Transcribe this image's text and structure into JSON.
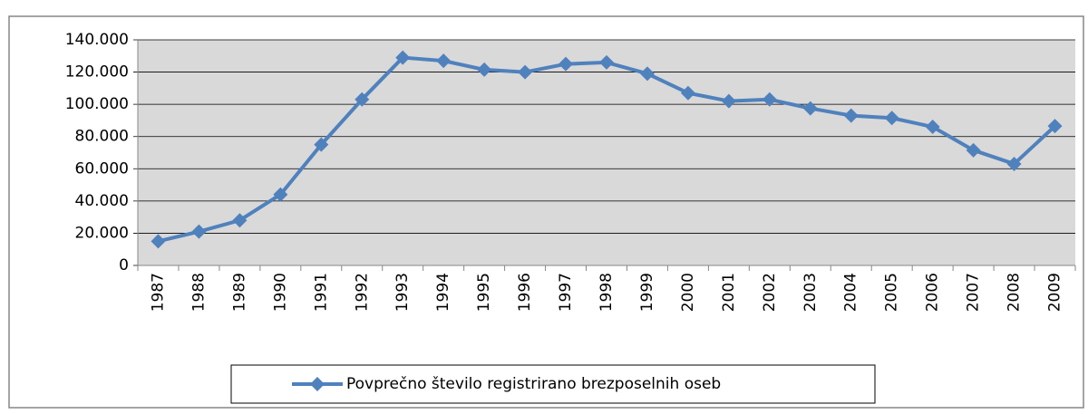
{
  "chart_data": {
    "type": "line",
    "categories": [
      "1987",
      "1988",
      "1989",
      "1990",
      "1991",
      "1992",
      "1993",
      "1994",
      "1995",
      "1996",
      "1997",
      "1998",
      "1999",
      "2000",
      "2001",
      "2002",
      "2003",
      "2004",
      "2005",
      "2006",
      "2007",
      "2008",
      "2009"
    ],
    "series": [
      {
        "name": "Povprečno število registrirano brezposelnih oseb",
        "color": "#4f81bd",
        "values": [
          15000,
          21000,
          28000,
          44000,
          75000,
          103000,
          129000,
          127000,
          121500,
          120000,
          125000,
          126000,
          119000,
          107000,
          102000,
          103000,
          97500,
          93000,
          91500,
          86000,
          71500,
          63000,
          86500
        ]
      }
    ],
    "ylim": [
      0,
      140000
    ],
    "yticks": [
      0,
      {
        "value": 20000,
        "label": "20.000"
      },
      {
        "value": 40000,
        "label": "40.000"
      },
      {
        "value": 60000,
        "label": "60.000"
      },
      {
        "value": 80000,
        "label": "80.000"
      },
      {
        "value": 100000,
        "label": "100.000"
      },
      {
        "value": 120000,
        "label": "120.000"
      },
      {
        "value": 140000,
        "label": "140.000"
      }
    ],
    "grid": true,
    "legend": "bottom"
  }
}
